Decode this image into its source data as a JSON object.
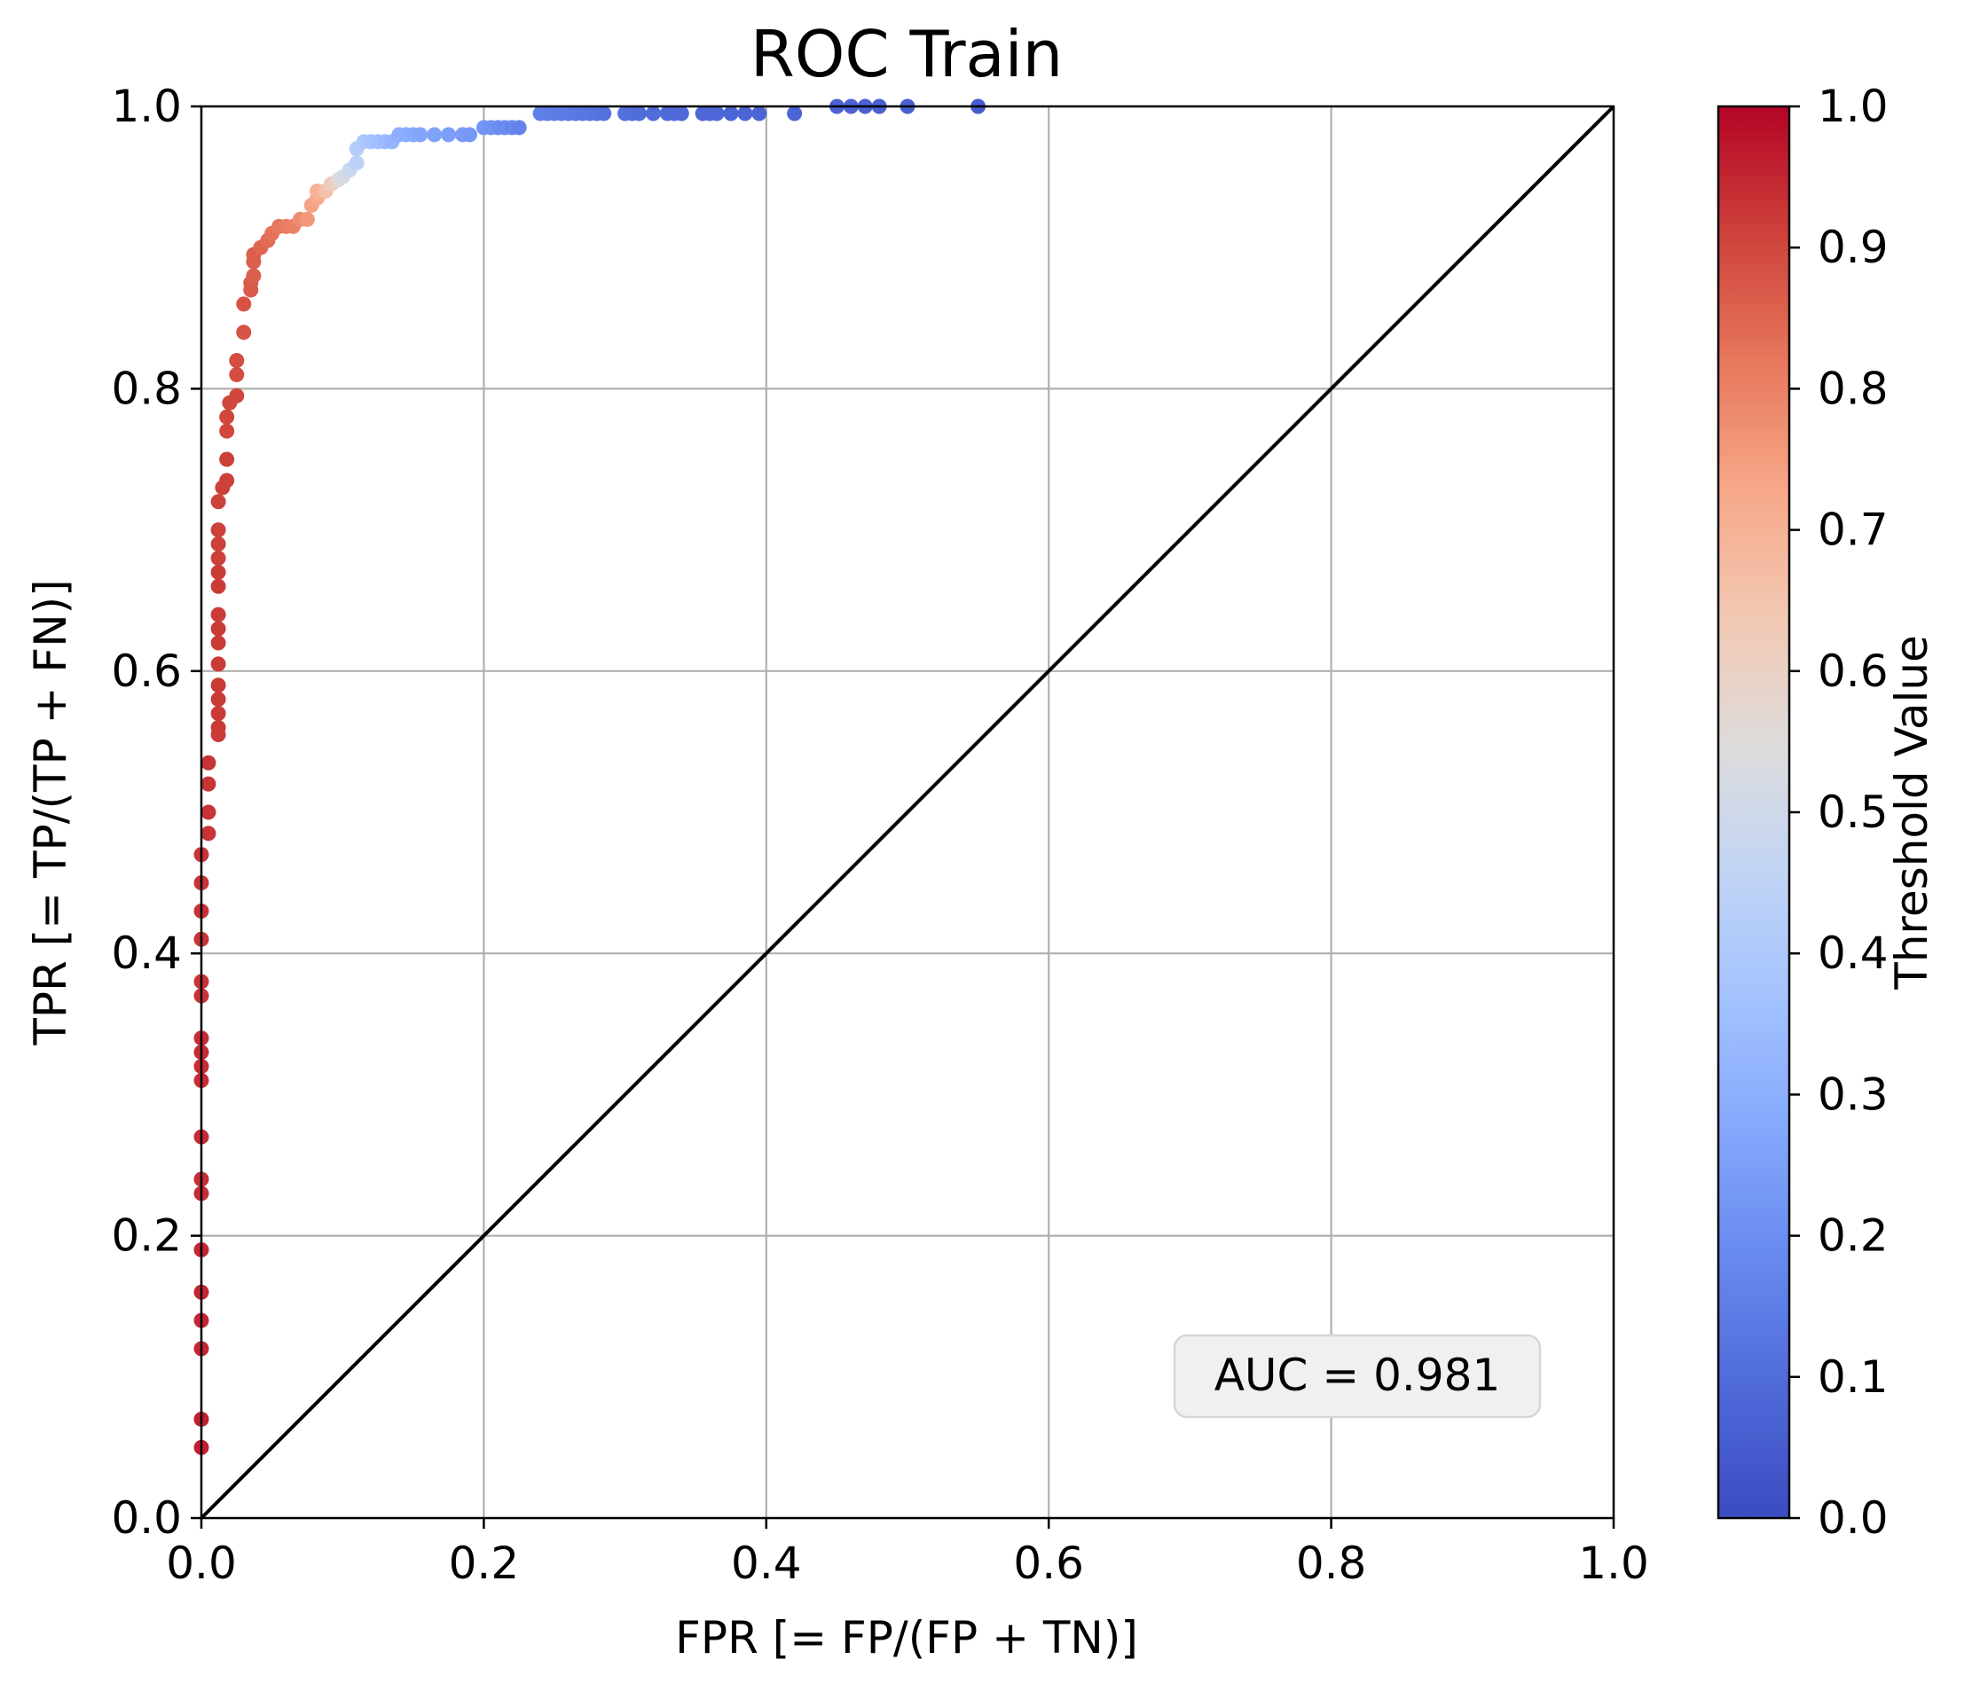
{
  "chart_data": {
    "type": "scatter",
    "title": "ROC Train",
    "xlabel": "FPR [= FP/(FP + TN)]",
    "ylabel": "TPR [= TP/(TP + FN)]",
    "xlim": [
      0.0,
      1.0
    ],
    "ylim": [
      0.0,
      1.0
    ],
    "xticks": [
      "0.0",
      "0.2",
      "0.4",
      "0.6",
      "0.8",
      "1.0"
    ],
    "yticks": [
      "0.0",
      "0.2",
      "0.4",
      "0.6",
      "0.8",
      "1.0"
    ],
    "grid": true,
    "colormap": "coolwarm",
    "colorbar": {
      "label": "Threshold Value",
      "range": [
        0.0,
        1.0
      ],
      "ticks": [
        "0.0",
        "0.1",
        "0.2",
        "0.3",
        "0.4",
        "0.5",
        "0.6",
        "0.7",
        "0.8",
        "0.9",
        "1.0"
      ],
      "colors": [
        "#3b4cc0",
        "#4f69d9",
        "#6788ee",
        "#84a7fc",
        "#a2c1ff",
        "#c0d4f5",
        "#dddcdc",
        "#f2c9b4",
        "#f7a889",
        "#e8785d",
        "#cd423b",
        "#b40426"
      ]
    },
    "diagonal": {
      "x": [
        0,
        1
      ],
      "y": [
        0,
        1
      ],
      "color": "#000000"
    },
    "annotation": {
      "text": "AUC = 0.981",
      "position": "bottom-right"
    },
    "points": [
      [
        0.0,
        0.05,
        0.96
      ],
      [
        0.0,
        0.07,
        0.96
      ],
      [
        0.0,
        0.12,
        0.95
      ],
      [
        0.0,
        0.14,
        0.95
      ],
      [
        0.0,
        0.16,
        0.95
      ],
      [
        0.0,
        0.19,
        0.95
      ],
      [
        0.0,
        0.23,
        0.94
      ],
      [
        0.0,
        0.24,
        0.94
      ],
      [
        0.0,
        0.27,
        0.94
      ],
      [
        0.0,
        0.31,
        0.94
      ],
      [
        0.0,
        0.32,
        0.94
      ],
      [
        0.0,
        0.33,
        0.94
      ],
      [
        0.0,
        0.34,
        0.94
      ],
      [
        0.0,
        0.37,
        0.93
      ],
      [
        0.0,
        0.38,
        0.93
      ],
      [
        0.0,
        0.41,
        0.93
      ],
      [
        0.0,
        0.43,
        0.93
      ],
      [
        0.0,
        0.45,
        0.93
      ],
      [
        0.0,
        0.47,
        0.93
      ],
      [
        0.005,
        0.485,
        0.93
      ],
      [
        0.005,
        0.5,
        0.93
      ],
      [
        0.005,
        0.52,
        0.93
      ],
      [
        0.005,
        0.535,
        0.93
      ],
      [
        0.012,
        0.555,
        0.92
      ],
      [
        0.012,
        0.56,
        0.92
      ],
      [
        0.012,
        0.57,
        0.92
      ],
      [
        0.012,
        0.58,
        0.92
      ],
      [
        0.012,
        0.59,
        0.92
      ],
      [
        0.012,
        0.605,
        0.92
      ],
      [
        0.012,
        0.62,
        0.92
      ],
      [
        0.012,
        0.63,
        0.92
      ],
      [
        0.012,
        0.64,
        0.92
      ],
      [
        0.012,
        0.66,
        0.92
      ],
      [
        0.012,
        0.67,
        0.92
      ],
      [
        0.012,
        0.68,
        0.91
      ],
      [
        0.012,
        0.69,
        0.91
      ],
      [
        0.012,
        0.7,
        0.91
      ],
      [
        0.012,
        0.72,
        0.91
      ],
      [
        0.015,
        0.73,
        0.91
      ],
      [
        0.018,
        0.735,
        0.91
      ],
      [
        0.018,
        0.75,
        0.91
      ],
      [
        0.018,
        0.77,
        0.9
      ],
      [
        0.018,
        0.78,
        0.9
      ],
      [
        0.02,
        0.79,
        0.9
      ],
      [
        0.025,
        0.795,
        0.9
      ],
      [
        0.025,
        0.81,
        0.89
      ],
      [
        0.025,
        0.82,
        0.89
      ],
      [
        0.03,
        0.84,
        0.88
      ],
      [
        0.03,
        0.86,
        0.88
      ],
      [
        0.035,
        0.87,
        0.87
      ],
      [
        0.035,
        0.875,
        0.87
      ],
      [
        0.037,
        0.88,
        0.86
      ],
      [
        0.037,
        0.89,
        0.86
      ],
      [
        0.037,
        0.895,
        0.86
      ],
      [
        0.042,
        0.9,
        0.85
      ],
      [
        0.047,
        0.905,
        0.84
      ],
      [
        0.05,
        0.91,
        0.83
      ],
      [
        0.055,
        0.915,
        0.82
      ],
      [
        0.06,
        0.915,
        0.81
      ],
      [
        0.065,
        0.915,
        0.8
      ],
      [
        0.07,
        0.92,
        0.78
      ],
      [
        0.075,
        0.92,
        0.76
      ],
      [
        0.078,
        0.93,
        0.74
      ],
      [
        0.082,
        0.935,
        0.72
      ],
      [
        0.082,
        0.94,
        0.7
      ],
      [
        0.088,
        0.94,
        0.66
      ],
      [
        0.092,
        0.945,
        0.62
      ],
      [
        0.097,
        0.948,
        0.56
      ],
      [
        0.1,
        0.95,
        0.52
      ],
      [
        0.105,
        0.955,
        0.48
      ],
      [
        0.11,
        0.96,
        0.44
      ],
      [
        0.11,
        0.97,
        0.42
      ],
      [
        0.115,
        0.975,
        0.4
      ],
      [
        0.12,
        0.975,
        0.38
      ],
      [
        0.125,
        0.975,
        0.36
      ],
      [
        0.13,
        0.975,
        0.34
      ],
      [
        0.135,
        0.975,
        0.32
      ],
      [
        0.14,
        0.98,
        0.3
      ],
      [
        0.145,
        0.98,
        0.29
      ],
      [
        0.15,
        0.98,
        0.28
      ],
      [
        0.155,
        0.98,
        0.27
      ],
      [
        0.165,
        0.98,
        0.26
      ],
      [
        0.175,
        0.98,
        0.25
      ],
      [
        0.185,
        0.98,
        0.24
      ],
      [
        0.19,
        0.98,
        0.23
      ],
      [
        0.2,
        0.985,
        0.22
      ],
      [
        0.205,
        0.985,
        0.21
      ],
      [
        0.21,
        0.985,
        0.2
      ],
      [
        0.215,
        0.985,
        0.19
      ],
      [
        0.22,
        0.985,
        0.18
      ],
      [
        0.225,
        0.985,
        0.17
      ],
      [
        0.24,
        0.995,
        0.16
      ],
      [
        0.245,
        0.995,
        0.155
      ],
      [
        0.25,
        0.995,
        0.15
      ],
      [
        0.255,
        0.995,
        0.145
      ],
      [
        0.26,
        0.995,
        0.14
      ],
      [
        0.265,
        0.995,
        0.135
      ],
      [
        0.27,
        0.995,
        0.13
      ],
      [
        0.275,
        0.995,
        0.125
      ],
      [
        0.28,
        0.995,
        0.12
      ],
      [
        0.285,
        0.995,
        0.115
      ],
      [
        0.3,
        0.995,
        0.11
      ],
      [
        0.305,
        0.995,
        0.105
      ],
      [
        0.31,
        0.995,
        0.1
      ],
      [
        0.32,
        0.995,
        0.098
      ],
      [
        0.33,
        0.995,
        0.095
      ],
      [
        0.335,
        0.995,
        0.093
      ],
      [
        0.34,
        0.995,
        0.09
      ],
      [
        0.355,
        0.995,
        0.088
      ],
      [
        0.36,
        0.995,
        0.086
      ],
      [
        0.365,
        0.995,
        0.084
      ],
      [
        0.375,
        0.995,
        0.082
      ],
      [
        0.385,
        0.995,
        0.08
      ],
      [
        0.395,
        0.995,
        0.078
      ],
      [
        0.42,
        0.995,
        0.075
      ],
      [
        0.45,
        1.0,
        0.07
      ],
      [
        0.46,
        1.0,
        0.068
      ],
      [
        0.47,
        1.0,
        0.066
      ],
      [
        0.48,
        1.0,
        0.064
      ],
      [
        0.5,
        1.0,
        0.06
      ],
      [
        0.55,
        1.0,
        0.05
      ]
    ]
  }
}
